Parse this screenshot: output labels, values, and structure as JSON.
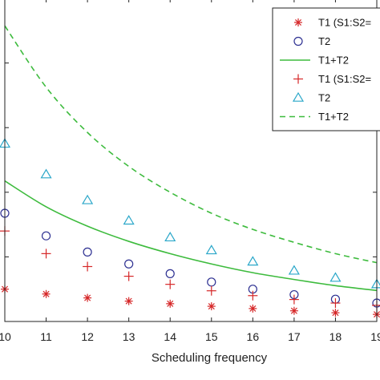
{
  "chart_data": {
    "type": "scatter",
    "title": "",
    "xlabel": "Scheduling frequency",
    "ylabel": "",
    "x_ticks": [
      "10",
      "11",
      "12",
      "13",
      "14",
      "15",
      "16",
      "17",
      "18",
      "19"
    ],
    "xlim": [
      10,
      19
    ],
    "ylim": [
      0,
      1
    ],
    "grid": false,
    "legend_position": "top-right",
    "series": [
      {
        "name": "T1 (S1:S2=",
        "marker": "asterisk",
        "color": "#d62728",
        "x": [
          10,
          11,
          12,
          13,
          14,
          15,
          16,
          17,
          18,
          19
        ],
        "y": [
          0.1,
          0.085,
          0.073,
          0.063,
          0.055,
          0.047,
          0.04,
          0.033,
          0.027,
          0.022
        ]
      },
      {
        "name": "T2",
        "marker": "circle",
        "color": "#2e3192",
        "x": [
          10,
          11,
          12,
          13,
          14,
          15,
          16,
          17,
          18,
          19
        ],
        "y": [
          0.335,
          0.265,
          0.215,
          0.178,
          0.148,
          0.122,
          0.1,
          0.083,
          0.069,
          0.057
        ]
      },
      {
        "name": "T1+T2",
        "marker": "none",
        "line": "solid",
        "color": "#3dbb3d",
        "x": [
          10,
          11,
          12,
          13,
          14,
          15,
          16,
          17,
          18,
          19
        ],
        "y": [
          0.435,
          0.355,
          0.295,
          0.248,
          0.21,
          0.178,
          0.151,
          0.13,
          0.111,
          0.096
        ]
      },
      {
        "name": "T1 (S1:S2=",
        "marker": "plus",
        "color": "#d62728",
        "x": [
          10,
          11,
          12,
          13,
          14,
          15,
          16,
          17,
          18,
          19
        ],
        "y": [
          0.28,
          0.21,
          0.17,
          0.14,
          0.115,
          0.095,
          0.08,
          0.068,
          0.057,
          0.05
        ]
      },
      {
        "name": "T2",
        "marker": "triangle",
        "color": "#2aa7c9",
        "x": [
          10,
          11,
          12,
          13,
          14,
          15,
          16,
          17,
          18,
          19
        ],
        "y": [
          0.55,
          0.455,
          0.375,
          0.312,
          0.26,
          0.22,
          0.185,
          0.157,
          0.135,
          0.115
        ]
      },
      {
        "name": "T1+T2",
        "marker": "none",
        "line": "dashed",
        "color": "#3dbb3d",
        "x": [
          10,
          11,
          12,
          13,
          14,
          15,
          16,
          17,
          18,
          19
        ],
        "y": [
          0.915,
          0.725,
          0.585,
          0.48,
          0.4,
          0.335,
          0.285,
          0.245,
          0.21,
          0.182
        ]
      }
    ]
  }
}
